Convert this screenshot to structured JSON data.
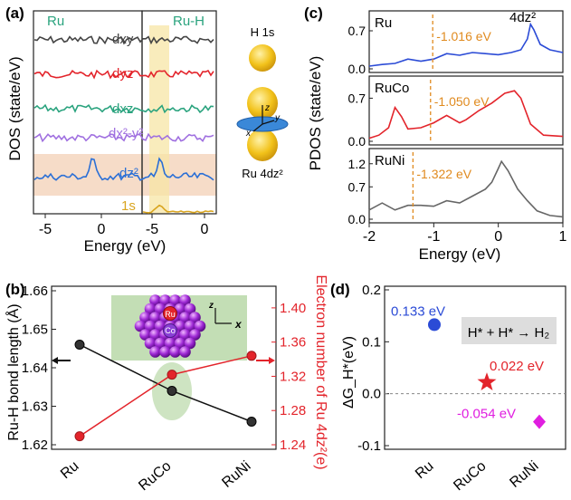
{
  "panel_labels": {
    "a": "(a)",
    "b": "(b)",
    "c": "(c)",
    "d": "(d)"
  },
  "colors": {
    "blue": "#2b4bd6",
    "red": "#e3242b",
    "gray": "#555555",
    "magenta": "#e01ee0",
    "orange": "#e08a1e",
    "teal": "#2aa37e"
  },
  "chart_data": [
    {
      "id": "a",
      "type": "line",
      "title": "",
      "xlabel": "Energy (eV)",
      "ylabel": "DOS (state/eV)",
      "left_header": "Ru",
      "right_header": "Ru-H",
      "left_ticks": [
        "-5",
        "0"
      ],
      "right_ticks": [
        "-5",
        "0"
      ],
      "left_xlim": [
        -6,
        1.5
      ],
      "right_xlim": [
        -6,
        1.5
      ],
      "series": [
        {
          "name": "dxy",
          "label": "dxy",
          "color": "#444444"
        },
        {
          "name": "dyz",
          "label": "dyz",
          "color": "#e3242b"
        },
        {
          "name": "dxz",
          "label": "dxz",
          "color": "#2aa37e"
        },
        {
          "name": "dx2-y2",
          "label": "dx²-y²",
          "color": "#a070e0"
        },
        {
          "name": "dz2",
          "label": "dz²",
          "color": "#2a6fd6"
        },
        {
          "name": "1s",
          "label": "1s",
          "color": "#d9a520"
        }
      ],
      "orbital_labels": {
        "h1s": "H 1s",
        "ru4dz2": "Ru 4dz²",
        "z": "z",
        "x": "x",
        "y": "y"
      }
    },
    {
      "id": "c",
      "type": "line",
      "xlabel": "Energy (eV)",
      "ylabel": "PDOS (state/eV)",
      "xlim": [
        -2,
        1
      ],
      "x_ticks": [
        "-2",
        "-1",
        "0",
        "1"
      ],
      "corner_label": "4dz²",
      "series": [
        {
          "name": "Ru",
          "color": "#2b4bd6",
          "yticks": [
            "0.7",
            "0.0"
          ],
          "ylim": [
            0,
            1.0
          ],
          "d_band_center": -1.016,
          "d_band_label": "-1.016 eV",
          "x": [
            -2,
            -1.8,
            -1.6,
            -1.4,
            -1.2,
            -1.0,
            -0.8,
            -0.6,
            -0.4,
            -0.2,
            0,
            0.2,
            0.35,
            0.45,
            0.5,
            0.55,
            0.65,
            0.8,
            1.0
          ],
          "y": [
            0.05,
            0.08,
            0.1,
            0.18,
            0.14,
            0.18,
            0.28,
            0.25,
            0.3,
            0.28,
            0.26,
            0.3,
            0.35,
            0.55,
            0.82,
            0.72,
            0.45,
            0.35,
            0.3
          ]
        },
        {
          "name": "RuCo",
          "color": "#e3242b",
          "yticks": [
            "0.7",
            "0.0"
          ],
          "ylim": [
            0,
            1.0
          ],
          "d_band_center": -1.05,
          "d_band_label": "-1.050 eV",
          "x": [
            -2,
            -1.85,
            -1.7,
            -1.6,
            -1.5,
            -1.4,
            -1.2,
            -1.0,
            -0.8,
            -0.6,
            -0.5,
            -0.3,
            -0.1,
            0.1,
            0.25,
            0.35,
            0.5,
            0.7,
            1.0
          ],
          "y": [
            0.05,
            0.1,
            0.22,
            0.55,
            0.4,
            0.2,
            0.22,
            0.3,
            0.42,
            0.3,
            0.35,
            0.5,
            0.62,
            0.78,
            0.82,
            0.7,
            0.28,
            0.1,
            0.08
          ]
        },
        {
          "name": "RuNi",
          "color": "#666666",
          "yticks": [
            "1.2",
            "0.7",
            "0.0"
          ],
          "ylim": [
            0,
            1.45
          ],
          "d_band_center": -1.322,
          "d_band_label": "-1.322 eV",
          "x": [
            -2,
            -1.8,
            -1.6,
            -1.4,
            -1.2,
            -1.0,
            -0.8,
            -0.6,
            -0.4,
            -0.2,
            -0.1,
            0,
            0.05,
            0.15,
            0.3,
            0.45,
            0.6,
            0.8,
            1.0
          ],
          "y": [
            0.2,
            0.35,
            0.2,
            0.3,
            0.3,
            0.28,
            0.4,
            0.35,
            0.5,
            0.65,
            0.8,
            1.1,
            1.25,
            1.05,
            0.65,
            0.4,
            0.18,
            0.08,
            0.05
          ]
        }
      ]
    },
    {
      "id": "b",
      "type": "line",
      "categories": [
        "Ru",
        "RuCo",
        "RuNi"
      ],
      "ylabel": "Ru-H bond length (Å)",
      "y2label": "Electron number of Ru 4dz²(e)",
      "ylim": [
        1.62,
        1.66
      ],
      "y2lim": [
        1.24,
        1.42
      ],
      "yticks": [
        "1.62",
        "1.63",
        "1.64",
        "1.65",
        "1.66"
      ],
      "y2ticks": [
        "1.24",
        "1.28",
        "1.32",
        "1.36",
        "1.40"
      ],
      "series": [
        {
          "name": "Ru-H bond length",
          "axis": "left",
          "color": "#111111",
          "values": [
            1.646,
            1.634,
            1.626
          ]
        },
        {
          "name": "Electron number of Ru 4dz2",
          "axis": "right",
          "color": "#e3242b",
          "values": [
            1.25,
            1.322,
            1.344
          ]
        }
      ],
      "inset": {
        "ru": "Ru",
        "co": "Co",
        "z": "z",
        "x": "x"
      }
    },
    {
      "id": "d",
      "type": "scatter",
      "categories": [
        "Ru",
        "RuCo",
        "RuNi"
      ],
      "ylabel": "ΔG_H*(eV)",
      "ylim": [
        -0.1,
        0.2
      ],
      "yticks": [
        "0.2",
        "0.1",
        "0.0",
        "-0.1"
      ],
      "values": [
        0.133,
        0.022,
        -0.054
      ],
      "value_labels": [
        "0.133 eV",
        "0.022 eV",
        "-0.054 eV"
      ],
      "legend_box": "H* + H* → H₂"
    }
  ]
}
